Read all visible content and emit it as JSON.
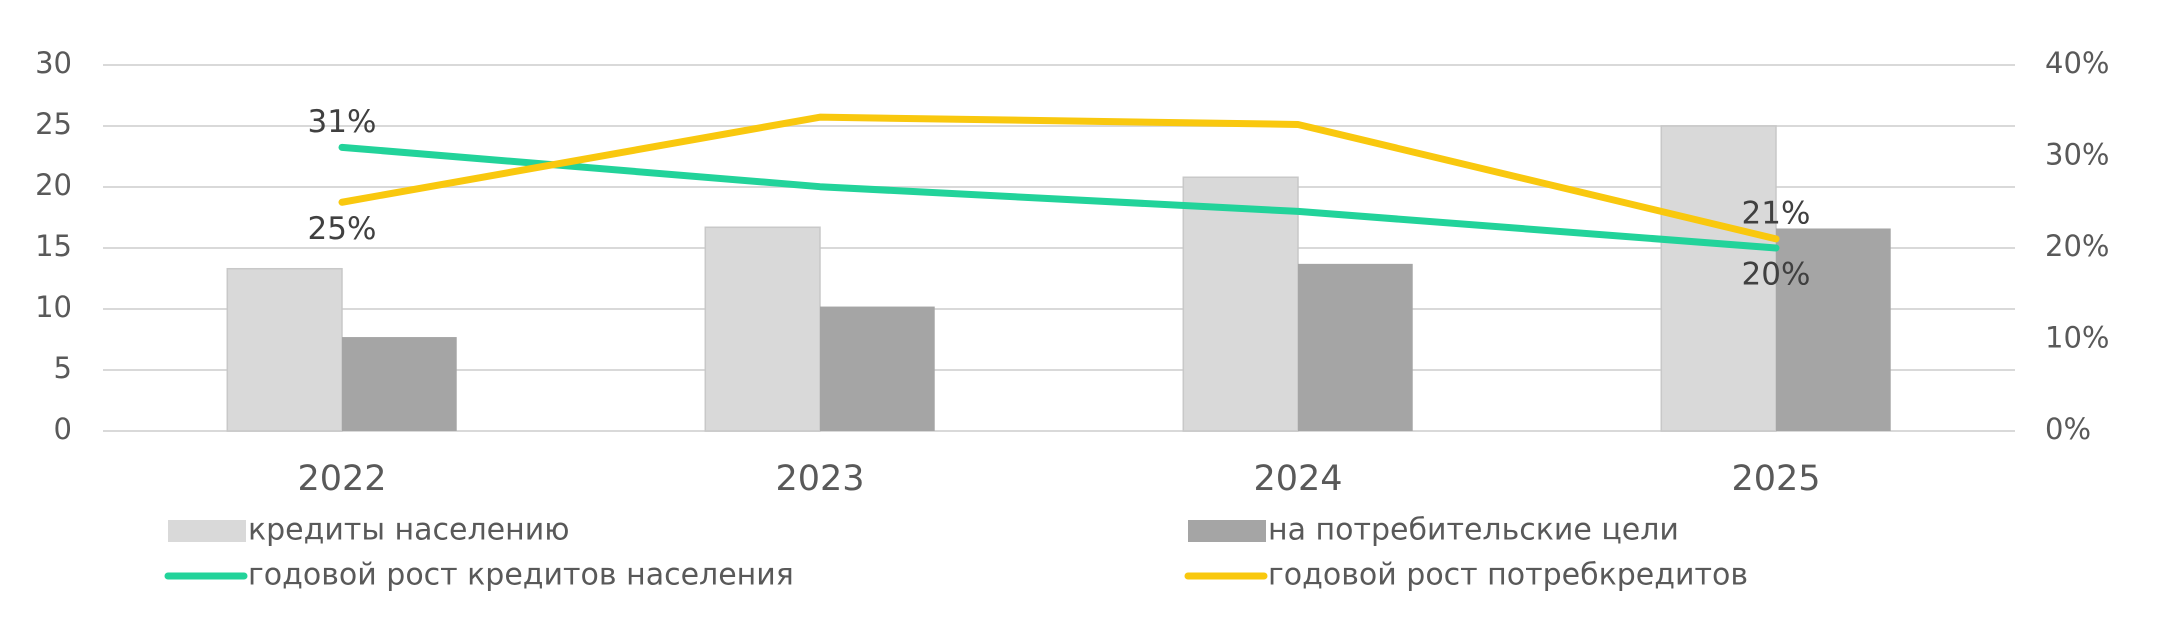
{
  "chart_data": {
    "type": "bar",
    "categories": [
      "2022",
      "2023",
      "2024",
      "2025"
    ],
    "series": [
      {
        "name": "кредиты населению",
        "type": "bar",
        "color": "#d9d9d9",
        "values": [
          13.3,
          16.7,
          20.8,
          25.0
        ]
      },
      {
        "name": "на потребительские цели",
        "type": "bar",
        "color": "#a5a5a5",
        "values": [
          7.7,
          10.2,
          13.7,
          16.6
        ]
      },
      {
        "name": "годовой рост кредитов населения",
        "type": "line",
        "axis": "y2",
        "color": "#22d39a",
        "values": [
          31,
          26.7,
          24,
          20
        ],
        "value_labels": [
          "31%",
          null,
          null,
          "20%"
        ]
      },
      {
        "name": "годовой рост потребкредитов",
        "type": "line",
        "axis": "y2",
        "color": "#f9c80e",
        "values": [
          25,
          34.3,
          33.5,
          21
        ],
        "value_labels": [
          "25%",
          null,
          null,
          "21%"
        ]
      }
    ],
    "ylim": [
      0,
      30
    ],
    "yticks": [
      0,
      5,
      10,
      15,
      20,
      25,
      30
    ],
    "y2lim": [
      0,
      40
    ],
    "y2ticks": [
      {
        "value": 0,
        "label": "0%"
      },
      {
        "value": 10,
        "label": "10%"
      },
      {
        "value": 20,
        "label": "20%"
      },
      {
        "value": 30,
        "label": "30%"
      },
      {
        "value": 40,
        "label": "40%"
      }
    ],
    "grid": true
  }
}
